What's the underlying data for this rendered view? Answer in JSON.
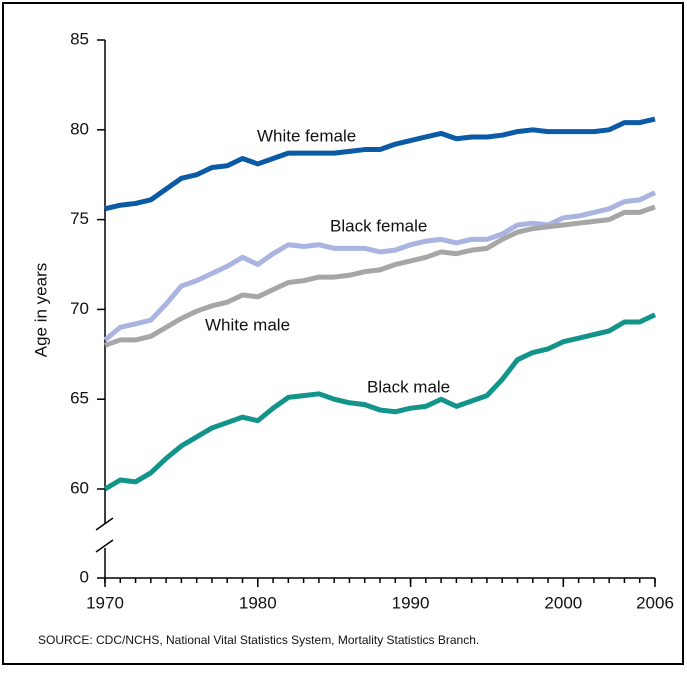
{
  "chart_data": {
    "type": "line",
    "y_label": "Age in years",
    "source": "SOURCE: CDC/NCHS, National Vital Statistics System, Mortality Statistics Branch.",
    "x": [
      1970,
      1971,
      1972,
      1973,
      1974,
      1975,
      1976,
      1977,
      1978,
      1979,
      1980,
      1981,
      1982,
      1983,
      1984,
      1985,
      1986,
      1987,
      1988,
      1989,
      1990,
      1991,
      1992,
      1993,
      1994,
      1995,
      1996,
      1997,
      1998,
      1999,
      2000,
      2001,
      2002,
      2003,
      2004,
      2005,
      2006
    ],
    "xlim": [
      1970,
      2006
    ],
    "xticks": [
      1970,
      1980,
      1990,
      2000,
      2006
    ],
    "ylim": [
      0,
      85
    ],
    "yticks": [
      0,
      60,
      65,
      70,
      75,
      80,
      85
    ],
    "y_break": true,
    "series": [
      {
        "name": "White female",
        "color": "#0b5aa6",
        "values": [
          75.6,
          75.8,
          75.9,
          76.1,
          76.7,
          77.3,
          77.5,
          77.9,
          78.0,
          78.4,
          78.1,
          78.4,
          78.7,
          78.7,
          78.7,
          78.7,
          78.8,
          78.9,
          78.9,
          79.2,
          79.4,
          79.6,
          79.8,
          79.5,
          79.6,
          79.6,
          79.7,
          79.9,
          80.0,
          79.9,
          79.9,
          79.9,
          79.9,
          80.0,
          80.4,
          80.4,
          80.6
        ]
      },
      {
        "name": "Black female",
        "color": "#a9b4e0",
        "values": [
          68.3,
          69.0,
          69.2,
          69.4,
          70.3,
          71.3,
          71.6,
          72.0,
          72.4,
          72.9,
          72.5,
          73.1,
          73.6,
          73.5,
          73.6,
          73.4,
          73.4,
          73.4,
          73.2,
          73.3,
          73.6,
          73.8,
          73.9,
          73.7,
          73.9,
          73.9,
          74.2,
          74.7,
          74.8,
          74.7,
          75.1,
          75.2,
          75.4,
          75.6,
          76.0,
          76.1,
          76.5
        ]
      },
      {
        "name": "White male",
        "color": "#a6a6a6",
        "values": [
          68.0,
          68.3,
          68.3,
          68.5,
          69.0,
          69.5,
          69.9,
          70.2,
          70.4,
          70.8,
          70.7,
          71.1,
          71.5,
          71.6,
          71.8,
          71.8,
          71.9,
          72.1,
          72.2,
          72.5,
          72.7,
          72.9,
          73.2,
          73.1,
          73.3,
          73.4,
          73.9,
          74.3,
          74.5,
          74.6,
          74.7,
          74.8,
          74.9,
          75.0,
          75.4,
          75.4,
          75.7
        ]
      },
      {
        "name": "Black male",
        "color": "#12948a",
        "values": [
          60.0,
          60.5,
          60.4,
          60.9,
          61.7,
          62.4,
          62.9,
          63.4,
          63.7,
          64.0,
          63.8,
          64.5,
          65.1,
          65.2,
          65.3,
          65.0,
          64.8,
          64.7,
          64.4,
          64.3,
          64.5,
          64.6,
          65.0,
          64.6,
          64.9,
          65.2,
          66.1,
          67.2,
          67.6,
          67.8,
          68.2,
          68.4,
          68.6,
          68.8,
          69.3,
          69.3,
          69.7
        ]
      }
    ]
  }
}
